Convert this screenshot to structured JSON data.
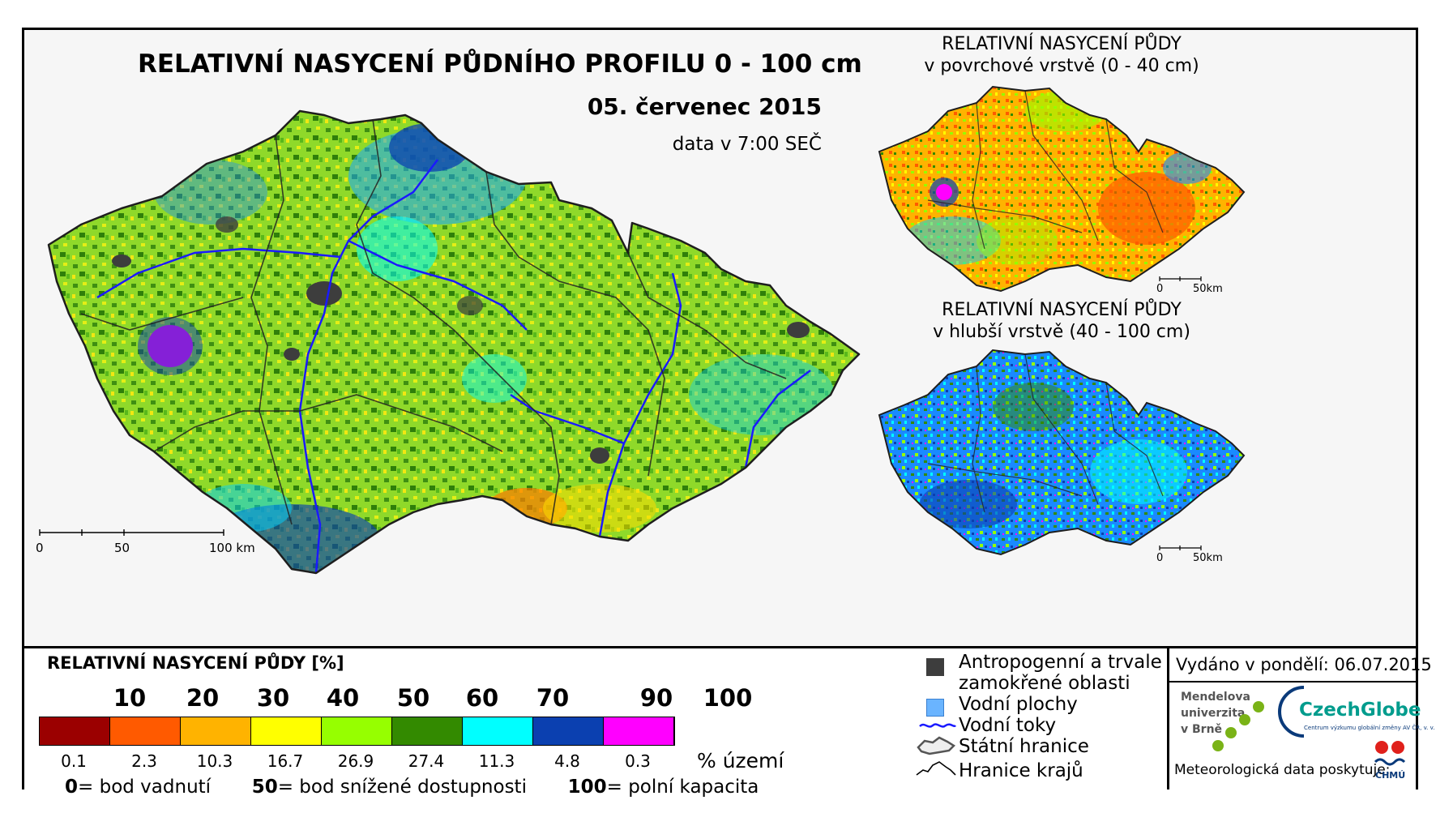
{
  "main_map": {
    "title": "RELATIVNÍ NASYCENÍ PŮDNÍHO PROFILU 0 - 100 cm",
    "date": "05. červenec 2015",
    "time": "data v 7:00 SEČ",
    "scale_labels": [
      "0",
      "50",
      "100 km"
    ]
  },
  "inset_top": {
    "title_line1": "RELATIVNÍ NASYCENÍ PŮDY",
    "title_line2": "v povrchové vrstvě (0 - 40 cm)",
    "scale_labels": [
      "0",
      "50km"
    ]
  },
  "inset_bottom": {
    "title_line1": "RELATIVNÍ NASYCENÍ PŮDY",
    "title_line2": "v hlubší vrstvě (40 - 100 cm)",
    "scale_labels": [
      "0",
      "50km"
    ]
  },
  "legend": {
    "title": "RELATIVNÍ NASYCENÍ PŮDY [%]",
    "ticks": [
      "10",
      "20",
      "30",
      "40",
      "50",
      "60",
      "70",
      "90",
      "100"
    ],
    "classes": [
      {
        "color": "#9b0000",
        "pct": "0.1"
      },
      {
        "color": "#ff5a00",
        "pct": "2.3"
      },
      {
        "color": "#ffb300",
        "pct": "10.3"
      },
      {
        "color": "#ffff00",
        "pct": "16.7"
      },
      {
        "color": "#96ff00",
        "pct": "26.9"
      },
      {
        "color": "#338a00",
        "pct": "27.4"
      },
      {
        "color": "#00ffff",
        "pct": "11.3"
      },
      {
        "color": "#0b40b0",
        "pct": "4.8"
      },
      {
        "color": "#ff00ff",
        "pct": "0.3"
      }
    ],
    "pct_unit": "% území",
    "definitions": [
      {
        "value": "0",
        "text": "= bod vadnutí"
      },
      {
        "value": "50",
        "text": "= bod snížené dostupnosti"
      },
      {
        "value": "100",
        "text": "= polní kapacita"
      }
    ]
  },
  "map_legend": {
    "anthropogenic_line1": "Antropogenní a trvale",
    "anthropogenic_line2": "zamokřené oblasti",
    "water_bodies": "Vodní plochy",
    "water_streams": "Vodní toky",
    "state_border": "Státní hranice",
    "region_border": "Hranice krajů",
    "colors": {
      "anthropogenic": "#3d3d3d",
      "water_bodies": "#6ab4ff",
      "water_streams": "#1a1aff"
    }
  },
  "info": {
    "issued": "Vydáno v pondělí: 06.07.2015",
    "mendel_line1": "Mendelova",
    "mendel_line2": "univerzita",
    "mendel_line3": "v Brně",
    "czechglobe": "CzechGlobe",
    "czechglobe_sub": "Centrum výzkumu globální změny AV ČR, v. v. i.",
    "provider": "Meteorologická data poskytuje:",
    "chmu": "ČHMÚ"
  }
}
